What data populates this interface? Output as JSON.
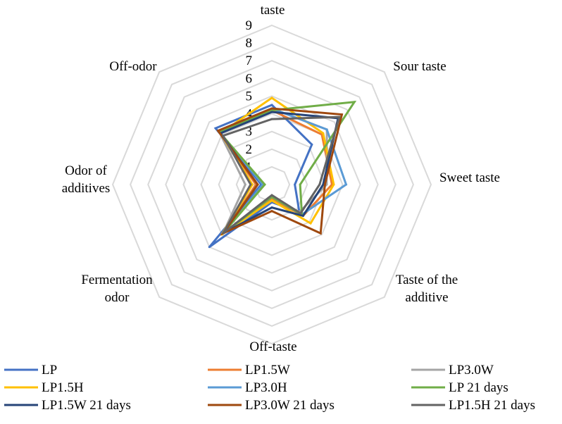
{
  "chart_data": {
    "type": "radar",
    "axes": [
      "taste",
      "Sour taste",
      "Sweet taste",
      "Taste of the additive",
      "Off-taste",
      "Fermentation odor",
      "Odor of additives",
      "Off-odor"
    ],
    "axis_label_lines": [
      [
        "taste"
      ],
      [
        "Sour taste"
      ],
      [
        "Sweet taste"
      ],
      [
        "Taste of the",
        "additive"
      ],
      [
        "Off-taste"
      ],
      [
        "Fermentation",
        "odor"
      ],
      [
        "Odor of",
        "additives"
      ],
      [
        "Off-odor"
      ]
    ],
    "rlim": [
      0,
      9
    ],
    "ticks": [
      "1",
      "2",
      "3",
      "4",
      "5",
      "6",
      "7",
      "8",
      "9"
    ],
    "grid": true,
    "legend_position": "bottom",
    "series": [
      {
        "name": "LP",
        "color": "#4472C4",
        "values": [
          4.5,
          3.2,
          1.3,
          2.2,
          1.0,
          5.0,
          0.6,
          4.5
        ]
      },
      {
        "name": "LP1.5W",
        "color": "#ED7D31",
        "values": [
          4.2,
          4.0,
          3.4,
          2.5,
          0.8,
          3.9,
          0.9,
          4.3
        ]
      },
      {
        "name": "LP3.0W",
        "color": "#A5A5A5",
        "values": [
          4.3,
          4.4,
          3.1,
          2.2,
          0.7,
          3.9,
          1.5,
          4.2
        ]
      },
      {
        "name": "LP1.5H",
        "color": "#FFC000",
        "values": [
          4.9,
          4.1,
          3.5,
          3.1,
          0.9,
          4.0,
          1.1,
          4.1
        ]
      },
      {
        "name": "LP3.0H",
        "color": "#5B9BD5",
        "values": [
          4.3,
          4.4,
          4.2,
          2.4,
          0.7,
          3.9,
          0.5,
          4.3
        ]
      },
      {
        "name": "LP 21 days",
        "color": "#70AD47",
        "values": [
          4.2,
          6.6,
          1.6,
          2.4,
          0.7,
          3.9,
          0.4,
          4.2
        ]
      },
      {
        "name": "LP1.5W 21 days",
        "color": "#264478",
        "values": [
          4.1,
          5.3,
          2.9,
          2.5,
          1.3,
          3.9,
          0.8,
          4.1
        ]
      },
      {
        "name": "LP3.0W 21 days",
        "color": "#9E480E",
        "values": [
          4.3,
          5.6,
          3.0,
          3.9,
          1.5,
          3.9,
          0.8,
          4.3
        ]
      },
      {
        "name": "LP1.5H 21 days",
        "color": "#636363",
        "values": [
          3.7,
          5.4,
          2.7,
          2.3,
          0.6,
          3.9,
          1.2,
          3.9
        ]
      }
    ]
  }
}
